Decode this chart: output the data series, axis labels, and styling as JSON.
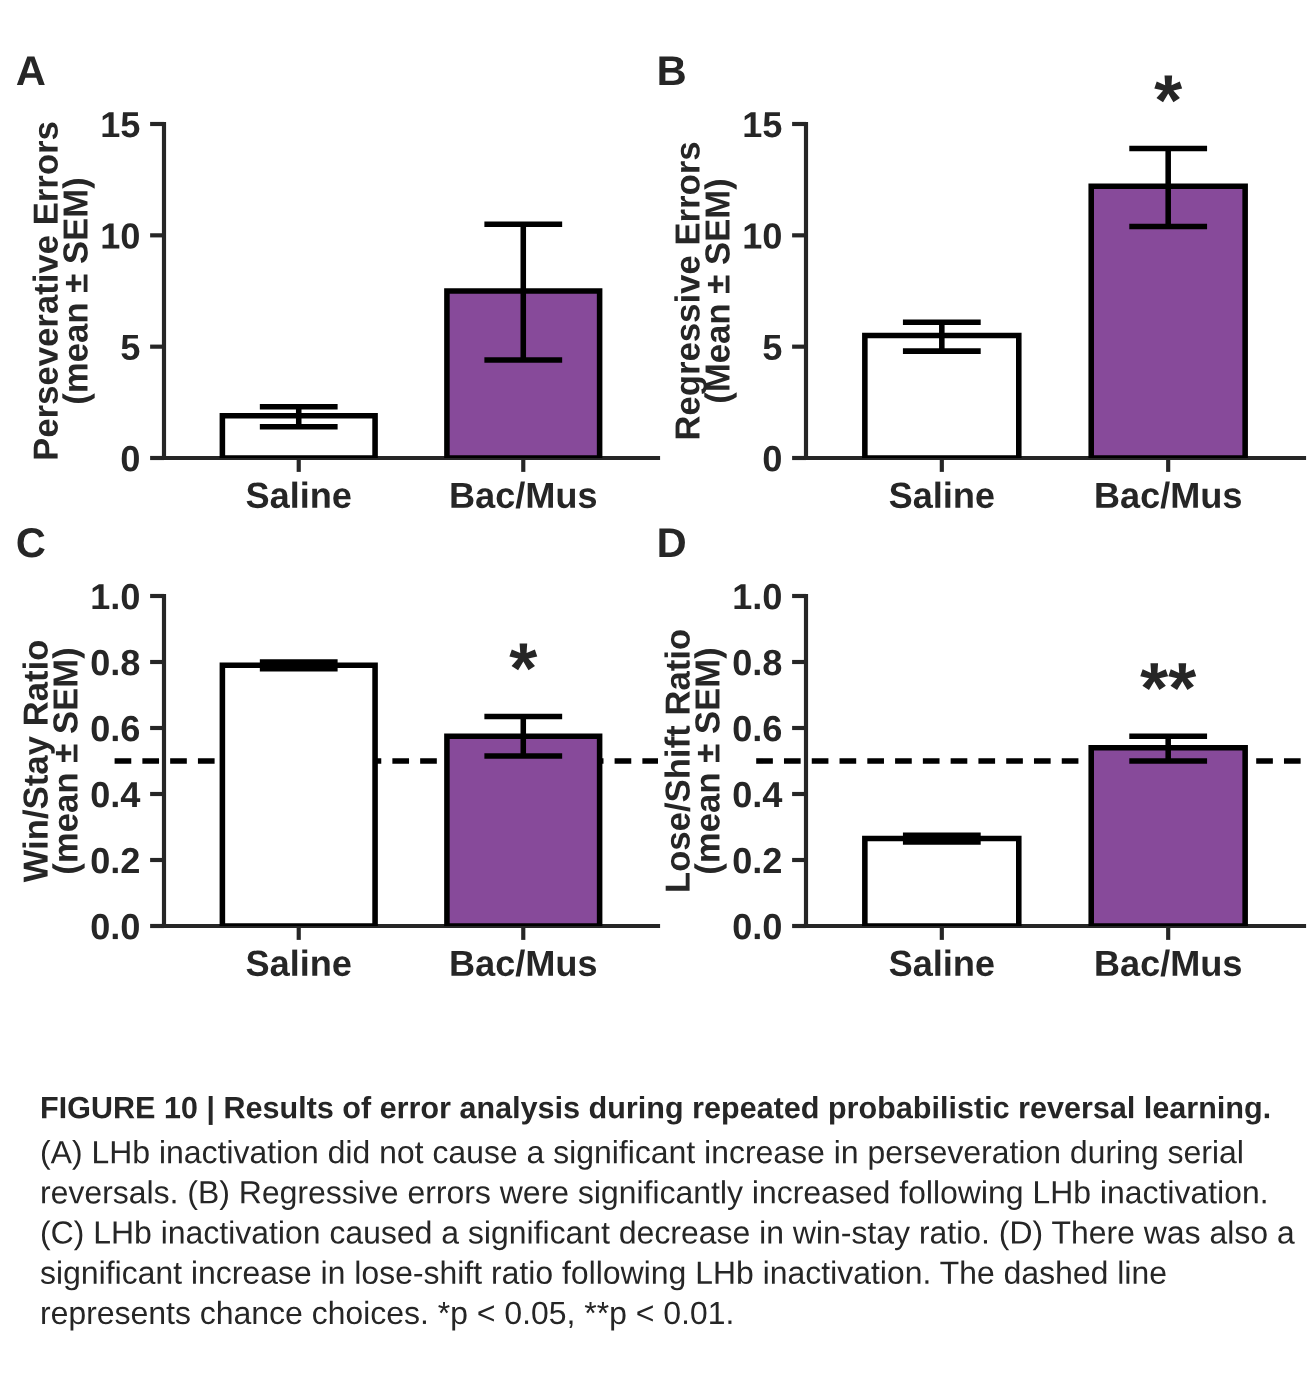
{
  "chart_data": [
    {
      "type": "bar",
      "title": "A",
      "ylabel": "Perseverative Errors\n(mean ± SEM)",
      "categories": [
        "Saline",
        "Bac/Mus"
      ],
      "values": [
        1.9,
        7.5
      ],
      "colors": [
        "#ffffff",
        "#874a9a"
      ],
      "errors": [
        [
          1.4,
          2.3
        ],
        [
          4.4,
          10.5
        ]
      ],
      "ylim": [
        0,
        15
      ],
      "yticks": [
        0,
        5,
        10,
        15
      ],
      "grid": false,
      "legend": false
    },
    {
      "type": "bar",
      "title": "B",
      "ylabel": "Regressive Errors\n(Mean ± SEM)",
      "categories": [
        "Saline",
        "Bac/Mus"
      ],
      "values": [
        5.5,
        12.2
      ],
      "colors": [
        "#ffffff",
        "#874a9a"
      ],
      "errors": [
        [
          4.8,
          6.1
        ],
        [
          10.4,
          13.9
        ]
      ],
      "ylim": [
        0,
        15
      ],
      "yticks": [
        0,
        5,
        10,
        15
      ],
      "grid": false,
      "legend": false,
      "annotations": [
        "*"
      ]
    },
    {
      "type": "bar",
      "title": "C",
      "ylabel": "Win/Stay Ratio\n(mean ± SEM)",
      "categories": [
        "Saline",
        "Bac/Mus"
      ],
      "values": [
        0.79,
        0.575
      ],
      "colors": [
        "#ffffff",
        "#874a9a"
      ],
      "errors": [
        [
          0.78,
          0.8
        ],
        [
          0.515,
          0.635
        ]
      ],
      "ylim": [
        0,
        1
      ],
      "yticks": [
        {
          "value": 0,
          "label": "0.0"
        },
        {
          "value": 0.2,
          "label": "0.2"
        },
        {
          "value": 0.4,
          "label": "0.4"
        },
        {
          "value": 0.6,
          "label": "0.6"
        },
        {
          "value": 0.8,
          "label": "0.8"
        },
        {
          "value": 1,
          "label": "1.0"
        }
      ],
      "grid": false,
      "legend": false,
      "ref_lines": [
        {
          "axis": "y",
          "value": 0.5,
          "line_style": "dashed",
          "color": "#000000"
        }
      ],
      "annotations": [
        "*"
      ]
    },
    {
      "type": "bar",
      "title": "D",
      "ylabel": "Lose/Shift Ratio\n(mean ± SEM)",
      "categories": [
        "Saline",
        "Bac/Mus"
      ],
      "values": [
        0.265,
        0.54
      ],
      "colors": [
        "#ffffff",
        "#874a9a"
      ],
      "errors": [
        [
          0.255,
          0.275
        ],
        [
          0.5,
          0.575
        ]
      ],
      "ylim": [
        0,
        1
      ],
      "yticks": [
        {
          "value": 0,
          "label": "0.0"
        },
        {
          "value": 0.2,
          "label": "0.2"
        },
        {
          "value": 0.4,
          "label": "0.4"
        },
        {
          "value": 0.6,
          "label": "0.6"
        },
        {
          "value": 0.8,
          "label": "0.8"
        },
        {
          "value": 1,
          "label": "1.0"
        }
      ],
      "grid": false,
      "legend": false,
      "ref_lines": [
        {
          "axis": "y",
          "value": 0.5,
          "line_style": "dashed",
          "color": "#000000"
        }
      ],
      "annotations": [
        "**",
        "FIGURE 10 | Results of error analysis during repeated probabilistic reversal learning.",
        "(A) LHb inactivation did not cause a significant increase in perseveration during serial reversals. (B) Regressive errors were significantly increased following LHb inactivation. (C) LHb inactivation caused a significant decrease in win-stay ratio. (D) There was also a significant increase in lose-shift ratio following LHb inactivation. The dashed line represents chance choices. *p < 0.05, **p < 0.01."
      ]
    }
  ]
}
